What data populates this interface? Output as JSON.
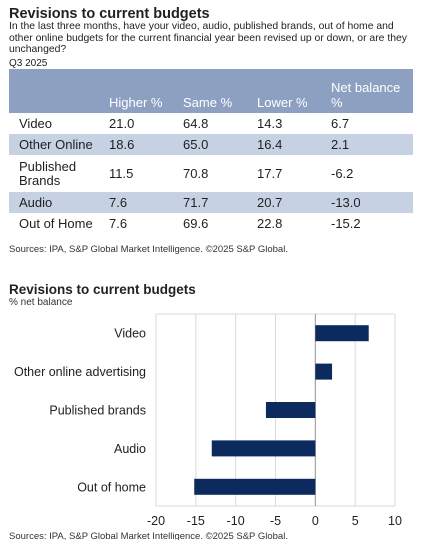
{
  "table": {
    "title": "Revisions to current budgets",
    "question": "In the last three months, have your video, audio, published brands, out of home and other online budgets for the current financial year been revised up or down, or are they unchanged?",
    "period": "Q3 2025",
    "headers": [
      "",
      "Higher %",
      "Same %",
      "Lower %",
      "Net balance %"
    ],
    "rows": [
      {
        "label": "Video",
        "higher": "21.0",
        "same": "64.8",
        "lower": "14.3",
        "net": "6.7"
      },
      {
        "label": "Other Online",
        "higher": "18.6",
        "same": "65.0",
        "lower": "16.4",
        "net": "2.1"
      },
      {
        "label": "Published Brands",
        "higher": "11.5",
        "same": "70.8",
        "lower": "17.7",
        "net": "-6.2"
      },
      {
        "label": "Audio",
        "higher": "7.6",
        "same": "71.7",
        "lower": "20.7",
        "net": "-13.0"
      },
      {
        "label": "Out of Home",
        "higher": "7.6",
        "same": "69.6",
        "lower": "22.8",
        "net": "-15.2"
      }
    ],
    "source": "Sources: IPA, S&P Global Market Intelligence. ©2025 S&P Global."
  },
  "chart_data": {
    "type": "bar",
    "orientation": "horizontal",
    "title": "Revisions to current budgets",
    "ylabel": "% net balance",
    "categories": [
      "Video",
      "Other online advertising",
      "Published brands",
      "Audio",
      "Out of home"
    ],
    "values": [
      6.7,
      2.1,
      -6.2,
      -13.0,
      -15.2
    ],
    "xlim": [
      -20,
      10
    ],
    "xticks": [
      -20,
      -15,
      -10,
      -5,
      0,
      5,
      10
    ],
    "grid": true,
    "bar_color": "#0c2a5e",
    "source": "Sources: IPA, S&P Global Market Intelligence. ©2025 S&P Global."
  }
}
